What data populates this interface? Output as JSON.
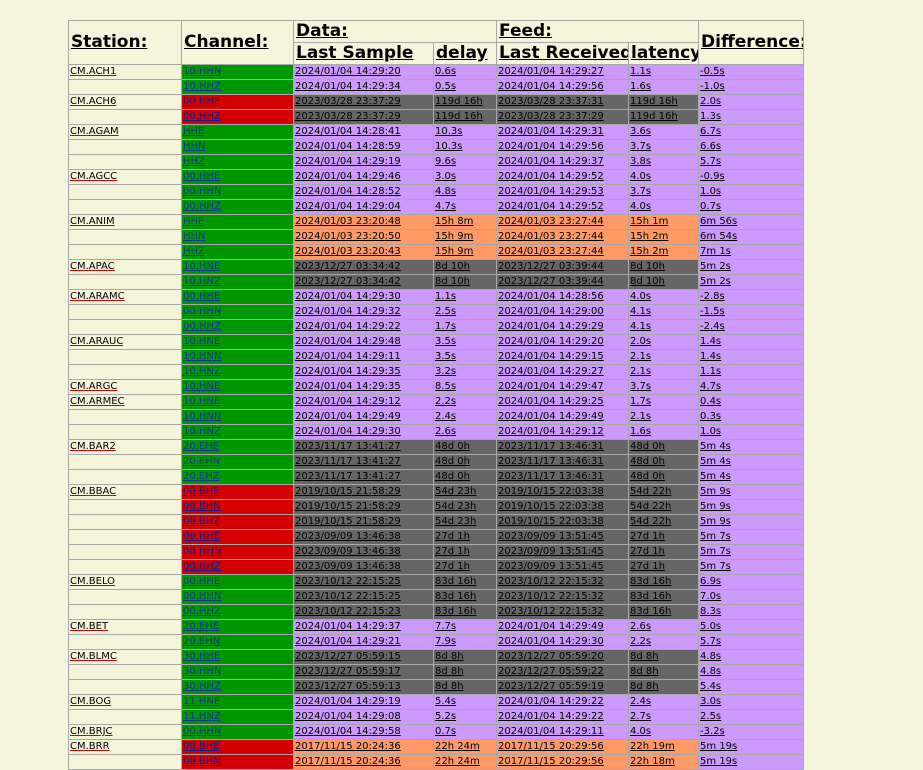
{
  "headers": {
    "station": "Station:",
    "channel": "Channel:",
    "data": "Data:",
    "feed": "Feed:",
    "last_sample": "Last Sample",
    "delay": "delay",
    "last_received": "Last Received",
    "latency": "latency",
    "difference": "Difference:"
  },
  "status_colors": {
    "channel_ok": "#009600",
    "channel_stale": "#d40000",
    "ok": "#cc99ff",
    "stale": "#666666",
    "warn": "#ff9966",
    "background": "#f5f5dc"
  },
  "rows": [
    {
      "station": "CM.ACH1",
      "channel": "10.HHN",
      "cs": "g",
      "last_sample": "2024/01/04 14:29:20",
      "delay": "0.6s",
      "ds": "p",
      "last_received": "2024/01/04 14:29:27",
      "latency": "1.1s",
      "ls": "p",
      "difference": "-0.5s"
    },
    {
      "station": "",
      "channel": "10.HHZ",
      "cs": "g",
      "last_sample": "2024/01/04 14:29:34",
      "delay": "0.5s",
      "ds": "p",
      "last_received": "2024/01/04 14:29:56",
      "latency": "1.6s",
      "ls": "p",
      "difference": "-1.0s"
    },
    {
      "station": "CM.ACH6",
      "channel": "00.HHE",
      "cs": "r",
      "last_sample": "2023/03/28 23:37:29",
      "delay": "119d 16h",
      "ds": "d",
      "last_received": "2023/03/28 23:37:31",
      "latency": "119d 16h",
      "ls": "d",
      "difference": "2.0s"
    },
    {
      "station": "",
      "channel": "00.HHZ",
      "cs": "r",
      "last_sample": "2023/03/28 23:37:29",
      "delay": "119d 16h",
      "ds": "d",
      "last_received": "2023/03/28 23:37:29",
      "latency": "119d 16h",
      "ls": "d",
      "difference": "1.3s"
    },
    {
      "station": "CM.AGAM",
      "channel": "HHE",
      "cs": "g",
      "last_sample": "2024/01/04 14:28:41",
      "delay": "10.3s",
      "ds": "p",
      "last_received": "2024/01/04 14:29:31",
      "latency": "3.6s",
      "ls": "p",
      "difference": "6.7s"
    },
    {
      "station": "",
      "channel": "HHN",
      "cs": "g",
      "last_sample": "2024/01/04 14:28:59",
      "delay": "10.3s",
      "ds": "p",
      "last_received": "2024/01/04 14:29:56",
      "latency": "3.7s",
      "ls": "p",
      "difference": "6.6s"
    },
    {
      "station": "",
      "channel": "HHZ",
      "cs": "g",
      "last_sample": "2024/01/04 14:29:19",
      "delay": "9.6s",
      "ds": "p",
      "last_received": "2024/01/04 14:29:37",
      "latency": "3.8s",
      "ls": "p",
      "difference": "5.7s"
    },
    {
      "station": "CM.AGCC",
      "channel": "00.HHE",
      "cs": "g",
      "last_sample": "2024/01/04 14:29:46",
      "delay": "3.0s",
      "ds": "p",
      "last_received": "2024/01/04 14:29:52",
      "latency": "4.0s",
      "ls": "p",
      "difference": "-0.9s"
    },
    {
      "station": "",
      "channel": "00.HHN",
      "cs": "g",
      "last_sample": "2024/01/04 14:28:52",
      "delay": "4.8s",
      "ds": "p",
      "last_received": "2024/01/04 14:29:53",
      "latency": "3.7s",
      "ls": "p",
      "difference": "1.0s"
    },
    {
      "station": "",
      "channel": "00.HHZ",
      "cs": "g",
      "last_sample": "2024/01/04 14:29:04",
      "delay": "4.7s",
      "ds": "p",
      "last_received": "2024/01/04 14:29:52",
      "latency": "4.0s",
      "ls": "p",
      "difference": "0.7s"
    },
    {
      "station": "CM.ANIM",
      "channel": "HHE",
      "cs": "g",
      "last_sample": "2024/01/03 23:20:48",
      "delay": "15h 8m",
      "ds": "o",
      "last_received": "2024/01/03 23:27:44",
      "latency": "15h 1m",
      "ls": "o",
      "difference": "6m 56s"
    },
    {
      "station": "",
      "channel": "HHN",
      "cs": "g",
      "last_sample": "2024/01/03 23:20:50",
      "delay": "15h 9m",
      "ds": "o",
      "last_received": "2024/01/03 23:27:44",
      "latency": "15h 2m",
      "ls": "o",
      "difference": "6m 54s"
    },
    {
      "station": "",
      "channel": "HHZ",
      "cs": "g",
      "last_sample": "2024/01/03 23:20:43",
      "delay": "15h 9m",
      "ds": "o",
      "last_received": "2024/01/03 23:27:44",
      "latency": "15h 2m",
      "ls": "o",
      "difference": "7m 1s"
    },
    {
      "station": "CM.APAC",
      "channel": "10.HNE",
      "cs": "g",
      "last_sample": "2023/12/27 03:34:42",
      "delay": "8d 10h",
      "ds": "d",
      "last_received": "2023/12/27 03:39:44",
      "latency": "8d 10h",
      "ls": "d",
      "difference": "5m 2s"
    },
    {
      "station": "",
      "channel": "10.HNZ",
      "cs": "g",
      "last_sample": "2023/12/27 03:34:42",
      "delay": "8d 10h",
      "ds": "d",
      "last_received": "2023/12/27 03:39:44",
      "latency": "8d 10h",
      "ls": "d",
      "difference": "5m 2s"
    },
    {
      "station": "CM.ARAMC",
      "channel": "00.HHE",
      "cs": "g",
      "last_sample": "2024/01/04 14:29:30",
      "delay": "1.1s",
      "ds": "p",
      "last_received": "2024/01/04 14:28:56",
      "latency": "4.0s",
      "ls": "p",
      "difference": "-2.8s"
    },
    {
      "station": "",
      "channel": "00.HHN",
      "cs": "g",
      "last_sample": "2024/01/04 14:29:32",
      "delay": "2.5s",
      "ds": "p",
      "last_received": "2024/01/04 14:29:00",
      "latency": "4.1s",
      "ls": "p",
      "difference": "-1.5s"
    },
    {
      "station": "",
      "channel": "00.HHZ",
      "cs": "g",
      "last_sample": "2024/01/04 14:29:22",
      "delay": "1.7s",
      "ds": "p",
      "last_received": "2024/01/04 14:29:29",
      "latency": "4.1s",
      "ls": "p",
      "difference": "-2.4s"
    },
    {
      "station": "CM.ARAUC",
      "channel": "10.HNE",
      "cs": "g",
      "last_sample": "2024/01/04 14:29:48",
      "delay": "3.5s",
      "ds": "p",
      "last_received": "2024/01/04 14:29:20",
      "latency": "2.0s",
      "ls": "p",
      "difference": "1.4s"
    },
    {
      "station": "",
      "channel": "10.HNN",
      "cs": "g",
      "last_sample": "2024/01/04 14:29:11",
      "delay": "3.5s",
      "ds": "p",
      "last_received": "2024/01/04 14:29:15",
      "latency": "2.1s",
      "ls": "p",
      "difference": "1.4s"
    },
    {
      "station": "",
      "channel": "10.HNZ",
      "cs": "g",
      "last_sample": "2024/01/04 14:29:35",
      "delay": "3.2s",
      "ds": "p",
      "last_received": "2024/01/04 14:29:27",
      "latency": "2.1s",
      "ls": "p",
      "difference": "1.1s"
    },
    {
      "station": "CM.ARGC",
      "channel": "10.HNE",
      "cs": "g",
      "last_sample": "2024/01/04 14:29:35",
      "delay": "8.5s",
      "ds": "p",
      "last_received": "2024/01/04 14:29:47",
      "latency": "3.7s",
      "ls": "p",
      "difference": "4.7s"
    },
    {
      "station": "CM.ARMEC",
      "channel": "10.HNE",
      "cs": "g",
      "last_sample": "2024/01/04 14:29:12",
      "delay": "2.2s",
      "ds": "p",
      "last_received": "2024/01/04 14:29:25",
      "latency": "1.7s",
      "ls": "p",
      "difference": "0.4s"
    },
    {
      "station": "",
      "channel": "10.HNN",
      "cs": "g",
      "last_sample": "2024/01/04 14:29:49",
      "delay": "2.4s",
      "ds": "p",
      "last_received": "2024/01/04 14:29:49",
      "latency": "2.1s",
      "ls": "p",
      "difference": "0.3s"
    },
    {
      "station": "",
      "channel": "10.HNZ",
      "cs": "g",
      "last_sample": "2024/01/04 14:29:30",
      "delay": "2.6s",
      "ds": "p",
      "last_received": "2024/01/04 14:29:12",
      "latency": "1.6s",
      "ls": "p",
      "difference": "1.0s"
    },
    {
      "station": "CM.BAR2",
      "channel": "20.EHE",
      "cs": "g",
      "last_sample": "2023/11/17 13:41:27",
      "delay": "48d 0h",
      "ds": "d",
      "last_received": "2023/11/17 13:46:31",
      "latency": "48d 0h",
      "ls": "d",
      "difference": "5m 4s"
    },
    {
      "station": "",
      "channel": "20.EHN",
      "cs": "g",
      "last_sample": "2023/11/17 13:41:27",
      "delay": "48d 0h",
      "ds": "d",
      "last_received": "2023/11/17 13:46:31",
      "latency": "48d 0h",
      "ls": "d",
      "difference": "5m 4s"
    },
    {
      "station": "",
      "channel": "20.EHZ",
      "cs": "g",
      "last_sample": "2023/11/17 13:41:27",
      "delay": "48d 0h",
      "ds": "d",
      "last_received": "2023/11/17 13:46:31",
      "latency": "48d 0h",
      "ls": "d",
      "difference": "5m 4s"
    },
    {
      "station": "CM.BBAC",
      "channel": "00.BHE",
      "cs": "r",
      "last_sample": "2019/10/15 21:58:29",
      "delay": "54d 23h",
      "ds": "d",
      "last_received": "2019/10/15 22:03:38",
      "latency": "54d 22h",
      "ls": "d",
      "difference": "5m 9s"
    },
    {
      "station": "",
      "channel": "00.BHN",
      "cs": "r",
      "last_sample": "2019/10/15 21:58:29",
      "delay": "54d 23h",
      "ds": "d",
      "last_received": "2019/10/15 22:03:38",
      "latency": "54d 22h",
      "ls": "d",
      "difference": "5m 9s"
    },
    {
      "station": "",
      "channel": "00.BHZ",
      "cs": "r",
      "last_sample": "2019/10/15 21:58:29",
      "delay": "54d 23h",
      "ds": "d",
      "last_received": "2019/10/15 22:03:38",
      "latency": "54d 22h",
      "ls": "d",
      "difference": "5m 9s"
    },
    {
      "station": "",
      "channel": "00.HHE",
      "cs": "r",
      "last_sample": "2023/09/09 13:46:38",
      "delay": "27d 1h",
      "ds": "d",
      "last_received": "2023/09/09 13:51:45",
      "latency": "27d 1h",
      "ls": "d",
      "difference": "5m 7s"
    },
    {
      "station": "",
      "channel": "00.HHN",
      "cs": "r",
      "last_sample": "2023/09/09 13:46:38",
      "delay": "27d 1h",
      "ds": "d",
      "last_received": "2023/09/09 13:51:45",
      "latency": "27d 1h",
      "ls": "d",
      "difference": "5m 7s"
    },
    {
      "station": "",
      "channel": "00.HHZ",
      "cs": "r",
      "last_sample": "2023/09/09 13:46:38",
      "delay": "27d 1h",
      "ds": "d",
      "last_received": "2023/09/09 13:51:45",
      "latency": "27d 1h",
      "ls": "d",
      "difference": "5m 7s"
    },
    {
      "station": "CM.BELO",
      "channel": "00.HHE",
      "cs": "g",
      "last_sample": "2023/10/12 22:15:25",
      "delay": "83d 16h",
      "ds": "d",
      "last_received": "2023/10/12 22:15:32",
      "latency": "83d 16h",
      "ls": "d",
      "difference": "6.9s"
    },
    {
      "station": "",
      "channel": "00.HHN",
      "cs": "g",
      "last_sample": "2023/10/12 22:15:25",
      "delay": "83d 16h",
      "ds": "d",
      "last_received": "2023/10/12 22:15:32",
      "latency": "83d 16h",
      "ls": "d",
      "difference": "7.0s"
    },
    {
      "station": "",
      "channel": "00.HHZ",
      "cs": "g",
      "last_sample": "2023/10/12 22:15:23",
      "delay": "83d 16h",
      "ds": "d",
      "last_received": "2023/10/12 22:15:32",
      "latency": "83d 16h",
      "ls": "d",
      "difference": "8.3s"
    },
    {
      "station": "CM.BET",
      "channel": "20.EHE",
      "cs": "g",
      "last_sample": "2024/01/04 14:29:37",
      "delay": "7.7s",
      "ds": "p",
      "last_received": "2024/01/04 14:29:49",
      "latency": "2.6s",
      "ls": "p",
      "difference": "5.0s"
    },
    {
      "station": "",
      "channel": "20.EHN",
      "cs": "g",
      "last_sample": "2024/01/04 14:29:21",
      "delay": "7.9s",
      "ds": "p",
      "last_received": "2024/01/04 14:29:30",
      "latency": "2.2s",
      "ls": "p",
      "difference": "5.7s"
    },
    {
      "station": "CM.BLMC",
      "channel": "30.HHE",
      "cs": "g",
      "last_sample": "2023/12/27 05:59:15",
      "delay": "8d 8h",
      "ds": "d",
      "last_received": "2023/12/27 05:59:20",
      "latency": "8d 8h",
      "ls": "d",
      "difference": "4.8s"
    },
    {
      "station": "",
      "channel": "30.HHN",
      "cs": "g",
      "last_sample": "2023/12/27 05:59:17",
      "delay": "8d 8h",
      "ds": "d",
      "last_received": "2023/12/27 05:59:22",
      "latency": "8d 8h",
      "ls": "d",
      "difference": "4.8s"
    },
    {
      "station": "",
      "channel": "30.HHZ",
      "cs": "g",
      "last_sample": "2023/12/27 05:59:13",
      "delay": "8d 8h",
      "ds": "d",
      "last_received": "2023/12/27 05:59:19",
      "latency": "8d 8h",
      "ls": "d",
      "difference": "5.4s"
    },
    {
      "station": "CM.BOG",
      "channel": "11.HNE",
      "cs": "g",
      "last_sample": "2024/01/04 14:29:19",
      "delay": "5.4s",
      "ds": "p",
      "last_received": "2024/01/04 14:29:22",
      "latency": "2.4s",
      "ls": "p",
      "difference": "3.0s"
    },
    {
      "station": "",
      "channel": "11.HNZ",
      "cs": "g",
      "last_sample": "2024/01/04 14:29:08",
      "delay": "5.2s",
      "ds": "p",
      "last_received": "2024/01/04 14:29:22",
      "latency": "2.7s",
      "ls": "p",
      "difference": "2.5s"
    },
    {
      "station": "CM.BRJC",
      "channel": "00.HHN",
      "cs": "g",
      "last_sample": "2024/01/04 14:29:58",
      "delay": "0.7s",
      "ds": "p",
      "last_received": "2024/01/04 14:29:11",
      "latency": "4.0s",
      "ls": "p",
      "difference": "-3.2s"
    },
    {
      "station": "CM.BRR",
      "channel": "00.BHE",
      "cs": "r",
      "last_sample": "2017/11/15 20:24:36",
      "delay": "22h 24m",
      "ds": "o",
      "last_received": "2017/11/15 20:29:56",
      "latency": "22h 19m",
      "ls": "o",
      "difference": "5m 19s"
    },
    {
      "station": "",
      "channel": "00.BHN",
      "cs": "r",
      "last_sample": "2017/11/15 20:24:36",
      "delay": "22h 24m",
      "ds": "o",
      "last_received": "2017/11/15 20:29:56",
      "latency": "22h 18m",
      "ls": "o",
      "difference": "5m 19s"
    }
  ]
}
